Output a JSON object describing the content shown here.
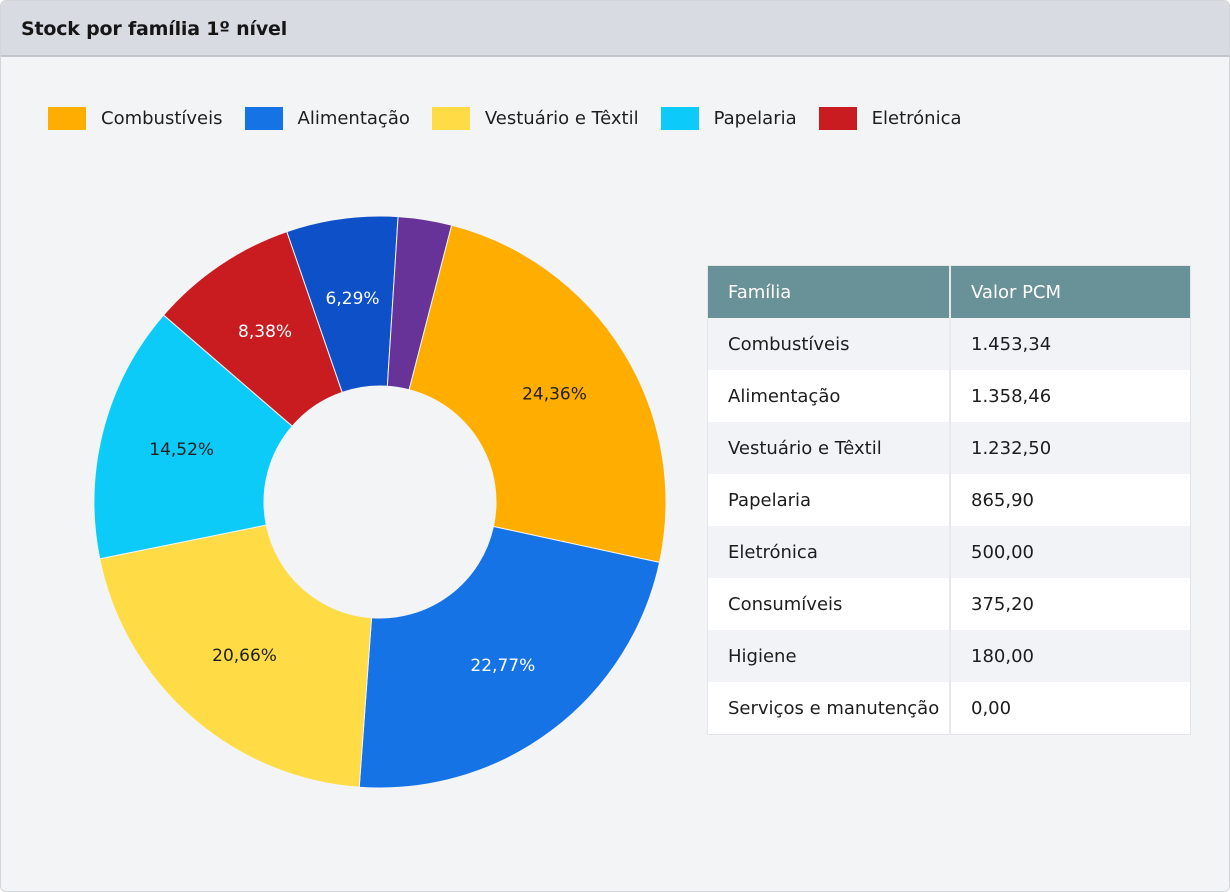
{
  "panel": {
    "title": "Stock por família 1º nível"
  },
  "chart_data": {
    "type": "pie",
    "variant": "donut",
    "legend_position": "top-left",
    "legend": [
      {
        "label": "Combustíveis",
        "color": "#ffae00"
      },
      {
        "label": "Alimentação",
        "color": "#1673e6"
      },
      {
        "label": "Vestuário e Têxtil",
        "color": "#ffdb46"
      },
      {
        "label": "Papelaria",
        "color": "#0ccbf8"
      },
      {
        "label": "Eletrónica",
        "color": "#c91c21"
      }
    ],
    "slices": [
      {
        "category": "Combustíveis",
        "value": 24.36,
        "label": "24,36%",
        "color": "#ffae00",
        "label_color": "#1f1f1f"
      },
      {
        "category": "Alimentação",
        "value": 22.77,
        "label": "22,77%",
        "color": "#1673e6",
        "label_color": "#ffffff"
      },
      {
        "category": "Vestuário e Têxtil",
        "value": 20.66,
        "label": "20,66%",
        "color": "#ffdb46",
        "label_color": "#1f1f1f"
      },
      {
        "category": "Papelaria",
        "value": 14.52,
        "label": "14,52%",
        "color": "#0ccbf8",
        "label_color": "#1f1f1f"
      },
      {
        "category": "Eletrónica",
        "value": 8.38,
        "label": "8,38%",
        "color": "#c91c21",
        "label_color": "#ffffff"
      },
      {
        "category": "Consumíveis",
        "value": 6.29,
        "label": "6,29%",
        "color": "#0d50c8",
        "label_color": "#ffffff"
      },
      {
        "category": "Higiene",
        "value": 3.02,
        "label": "",
        "color": "#673399",
        "label_color": "#ffffff"
      }
    ]
  },
  "table": {
    "headers": [
      "Família",
      "Valor PCM"
    ],
    "rows": [
      [
        "Combustíveis",
        "1.453,34"
      ],
      [
        "Alimentação",
        "1.358,46"
      ],
      [
        "Vestuário e Têxtil",
        "1.232,50"
      ],
      [
        "Papelaria",
        "865,90"
      ],
      [
        "Eletrónica",
        "500,00"
      ],
      [
        "Consumíveis",
        "375,20"
      ],
      [
        "Higiene",
        "180,00"
      ],
      [
        "Serviços e manutenção",
        "0,00"
      ]
    ]
  }
}
